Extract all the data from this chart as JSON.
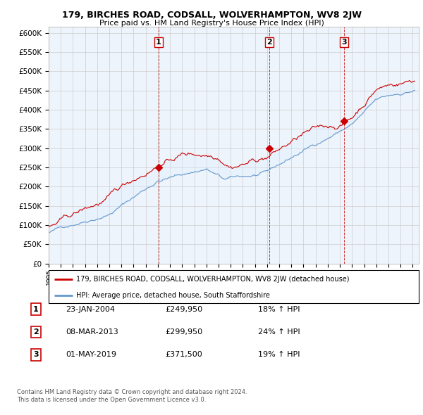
{
  "title": "179, BIRCHES ROAD, CODSALL, WOLVERHAMPTON, WV8 2JW",
  "subtitle": "Price paid vs. HM Land Registry's House Price Index (HPI)",
  "ylabel_ticks": [
    "£0",
    "£50K",
    "£100K",
    "£150K",
    "£200K",
    "£250K",
    "£300K",
    "£350K",
    "£400K",
    "£450K",
    "£500K",
    "£550K",
    "£600K"
  ],
  "ytick_values": [
    0,
    50000,
    100000,
    150000,
    200000,
    250000,
    300000,
    350000,
    400000,
    450000,
    500000,
    550000,
    600000
  ],
  "ylim": [
    0,
    615000
  ],
  "xlim_start": 1995.0,
  "xlim_end": 2025.5,
  "sale1": {
    "date": "23-JAN-2004",
    "price": 249950,
    "year": 2004.06,
    "label": "1",
    "hpi_pct": "18% ↑ HPI"
  },
  "sale2": {
    "date": "08-MAR-2013",
    "price": 299950,
    "year": 2013.18,
    "label": "2",
    "hpi_pct": "24% ↑ HPI"
  },
  "sale3": {
    "date": "01-MAY-2019",
    "price": 371500,
    "year": 2019.33,
    "label": "3",
    "hpi_pct": "19% ↑ HPI"
  },
  "red_color": "#cc0000",
  "blue_color": "#6699cc",
  "fill_color": "#ddeeff",
  "vline_color": "#cc0000",
  "grid_color": "#cccccc",
  "bg_color": "#eef4fb",
  "legend_label_red": "179, BIRCHES ROAD, CODSALL, WOLVERHAMPTON, WV8 2JW (detached house)",
  "legend_label_blue": "HPI: Average price, detached house, South Staffordshire",
  "footer1": "Contains HM Land Registry data © Crown copyright and database right 2024.",
  "footer2": "This data is licensed under the Open Government Licence v3.0."
}
